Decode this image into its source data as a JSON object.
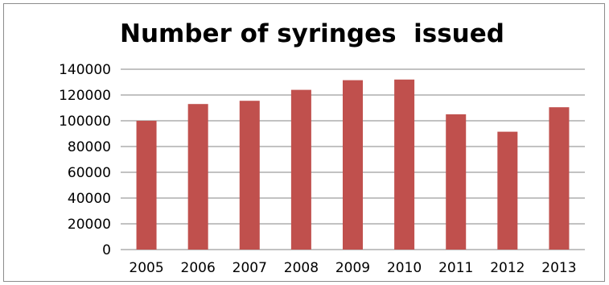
{
  "chart_data": {
    "type": "bar",
    "title": "Number of syringes  issued",
    "categories": [
      "2005",
      "2006",
      "2007",
      "2008",
      "2009",
      "2010",
      "2011",
      "2012",
      "2013"
    ],
    "series": [
      {
        "values": [
          100000,
          113000,
          115500,
          124000,
          131500,
          132000,
          105000,
          91500,
          110500
        ]
      }
    ],
    "ylim": [
      0,
      140000
    ],
    "yticks": [
      0,
      20000,
      40000,
      60000,
      80000,
      100000,
      120000,
      140000
    ],
    "grid": true,
    "legend": "none",
    "bar_color": "#C0504D",
    "grid_color": "#868686"
  }
}
